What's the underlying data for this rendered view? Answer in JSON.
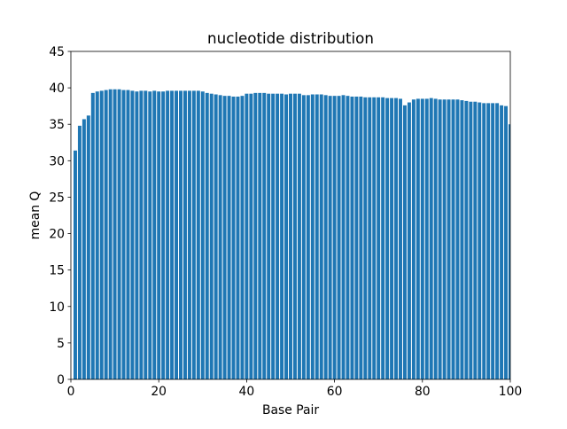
{
  "chart_data": {
    "type": "bar",
    "title": "nucleotide distribution",
    "xlabel": "Base Pair",
    "ylabel": "mean Q",
    "color": "#1f77b4",
    "x": [
      1,
      2,
      3,
      4,
      5,
      6,
      7,
      8,
      9,
      10,
      11,
      12,
      13,
      14,
      15,
      16,
      17,
      18,
      19,
      20,
      21,
      22,
      23,
      24,
      25,
      26,
      27,
      28,
      29,
      30,
      31,
      32,
      33,
      34,
      35,
      36,
      37,
      38,
      39,
      40,
      41,
      42,
      43,
      44,
      45,
      46,
      47,
      48,
      49,
      50,
      51,
      52,
      53,
      54,
      55,
      56,
      57,
      58,
      59,
      60,
      61,
      62,
      63,
      64,
      65,
      66,
      67,
      68,
      69,
      70,
      71,
      72,
      73,
      74,
      75,
      76,
      77,
      78,
      79,
      80,
      81,
      82,
      83,
      84,
      85,
      86,
      87,
      88,
      89,
      90,
      91,
      92,
      93,
      94,
      95,
      96,
      97,
      98,
      99,
      100
    ],
    "values": [
      31.4,
      34.8,
      35.7,
      36.2,
      39.3,
      39.5,
      39.6,
      39.7,
      39.8,
      39.8,
      39.8,
      39.7,
      39.7,
      39.6,
      39.5,
      39.6,
      39.6,
      39.5,
      39.6,
      39.5,
      39.5,
      39.6,
      39.6,
      39.6,
      39.6,
      39.6,
      39.6,
      39.6,
      39.6,
      39.5,
      39.3,
      39.2,
      39.1,
      39.0,
      38.9,
      38.9,
      38.8,
      38.8,
      38.9,
      39.2,
      39.2,
      39.3,
      39.3,
      39.3,
      39.2,
      39.2,
      39.2,
      39.2,
      39.1,
      39.2,
      39.2,
      39.2,
      39.0,
      39.0,
      39.1,
      39.1,
      39.1,
      39.0,
      38.9,
      38.9,
      38.9,
      39.0,
      38.9,
      38.8,
      38.8,
      38.8,
      38.7,
      38.7,
      38.7,
      38.7,
      38.7,
      38.6,
      38.6,
      38.6,
      38.5,
      37.6,
      38.0,
      38.4,
      38.5,
      38.5,
      38.5,
      38.6,
      38.5,
      38.4,
      38.4,
      38.4,
      38.4,
      38.4,
      38.3,
      38.2,
      38.1,
      38.1,
      38.0,
      37.9,
      37.9,
      37.9,
      37.9,
      37.6,
      37.5,
      35.0
    ],
    "xlim": [
      0,
      100
    ],
    "xticks": [
      0,
      20,
      40,
      60,
      80,
      100
    ],
    "ylim": [
      0,
      45
    ],
    "yticks": [
      0,
      5,
      10,
      15,
      20,
      25,
      30,
      35,
      40,
      45
    ]
  }
}
